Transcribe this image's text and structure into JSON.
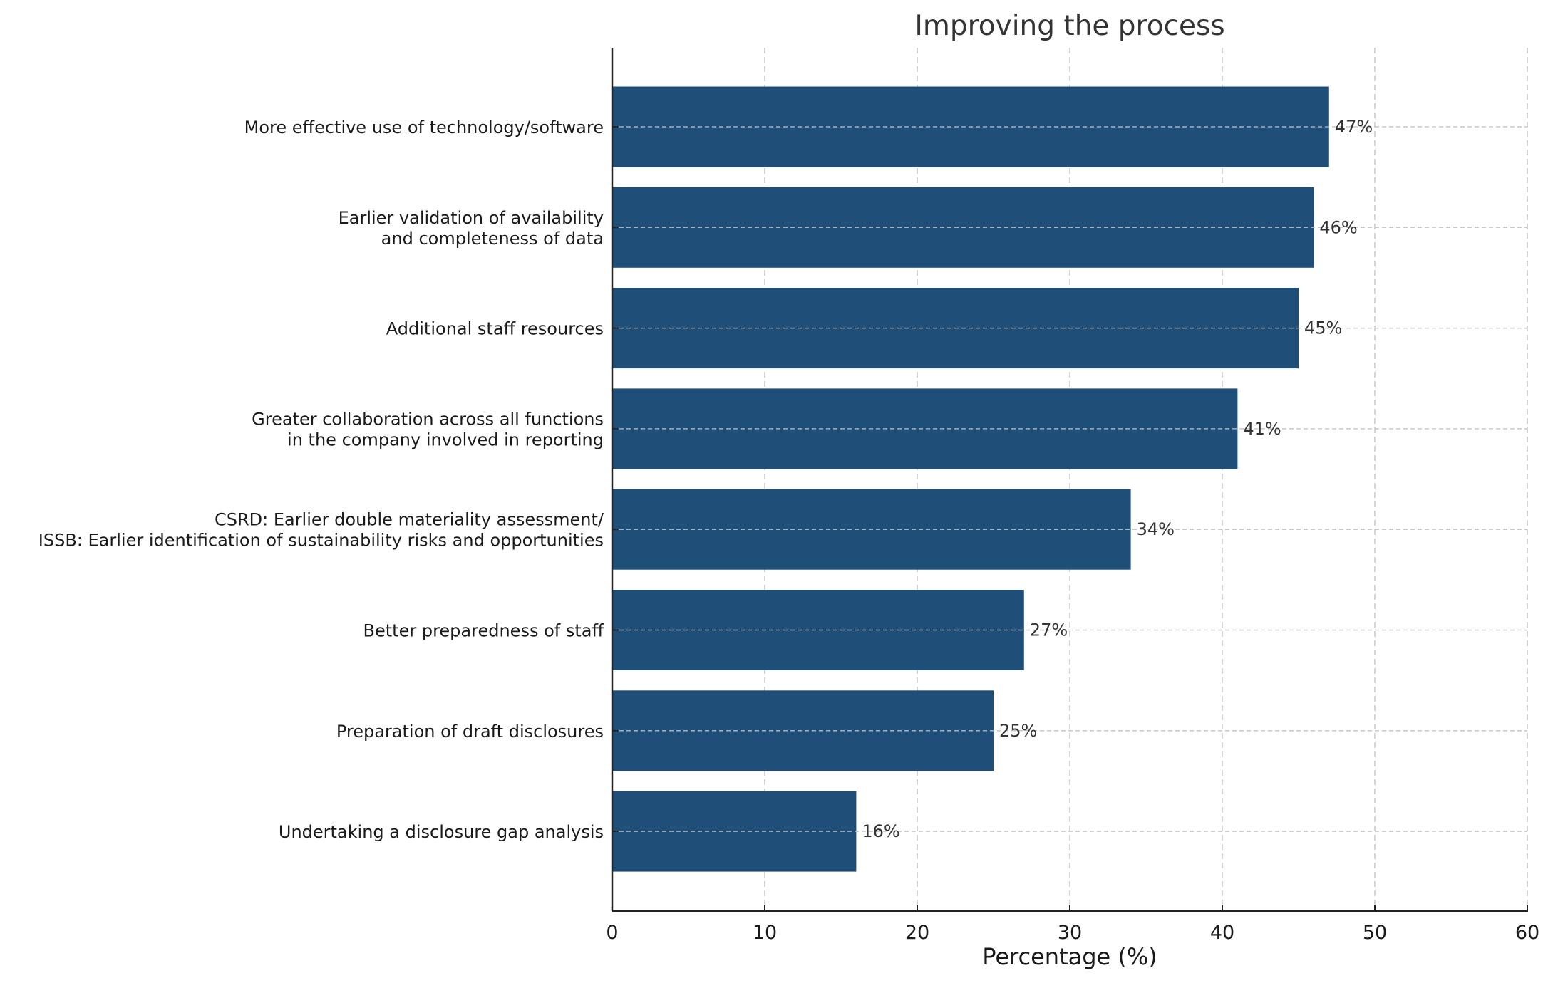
{
  "chart_data": {
    "type": "bar",
    "orientation": "horizontal",
    "title": "Improving the process",
    "xlabel": "Percentage (%)",
    "ylabel": "",
    "xlim": [
      0,
      60
    ],
    "xticks": [
      "0",
      "10",
      "20",
      "30",
      "40",
      "50",
      "60"
    ],
    "grid": true,
    "bar_color": "#1f4e79",
    "categories": [
      [
        "More effective use of technology/software"
      ],
      [
        "Earlier validation of availability",
        "and completeness of data"
      ],
      [
        "Additional staff resources"
      ],
      [
        "Greater collaboration across all functions",
        "in the company involved in reporting"
      ],
      [
        "CSRD: Earlier double materiality assessment/",
        "ISSB: Earlier identification of sustainability risks and opportunities"
      ],
      [
        "Better preparedness of staff"
      ],
      [
        "Preparation of draft disclosures"
      ],
      [
        "Undertaking a disclosure gap analysis"
      ]
    ],
    "values": [
      47,
      46,
      45,
      41,
      34,
      27,
      25,
      16
    ],
    "data_labels": [
      "47%",
      "46%",
      "45%",
      "41%",
      "34%",
      "27%",
      "25%",
      "16%"
    ]
  }
}
